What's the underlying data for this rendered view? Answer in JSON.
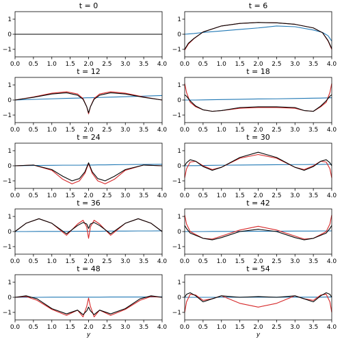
{
  "figure": {
    "xlabel": "y",
    "colors": {
      "blue": "#1f77b4",
      "red": "#d62728",
      "black": "#000000"
    }
  },
  "chart_data": {
    "type": "line",
    "layout": "5x2 grid of subplots",
    "grid": false,
    "xlim": [
      0,
      4
    ],
    "ylim": [
      -1.5,
      1.5
    ],
    "xticks": [
      "0.0",
      "0.5",
      "1.0",
      "1.5",
      "2.0",
      "2.5",
      "3.0",
      "3.5",
      "4.0"
    ],
    "yticks": [
      "-1",
      "0",
      "1"
    ],
    "xlabel": "y",
    "panels": [
      {
        "title": "t = 0",
        "x": [
          0,
          4
        ],
        "series": [
          {
            "color": "blue",
            "y": [
              0,
              0
            ]
          },
          {
            "color": "black",
            "y": [
              0,
              0
            ]
          }
        ]
      },
      {
        "title": "t = 6",
        "x": [
          0,
          0.1,
          0.25,
          0.5,
          1.0,
          1.5,
          2.0,
          2.5,
          3.0,
          3.5,
          3.75,
          3.9,
          4.0
        ],
        "series": [
          {
            "color": "blue",
            "y": [
              0,
              0.02,
              0.05,
              0.12,
              0.22,
              0.32,
              0.42,
              0.55,
              0.5,
              0.28,
              0.12,
              -0.1,
              -0.45
            ]
          },
          {
            "color": "red",
            "y": [
              -1.05,
              -0.65,
              -0.3,
              0.15,
              0.55,
              0.72,
              0.78,
              0.76,
              0.66,
              0.42,
              0.1,
              -0.45,
              -1.0
            ]
          },
          {
            "color": "black",
            "y": [
              -1.0,
              -0.6,
              -0.28,
              0.15,
              0.55,
              0.72,
              0.78,
              0.76,
              0.66,
              0.42,
              0.1,
              -0.42,
              -0.95
            ]
          }
        ]
      },
      {
        "title": "t = 12",
        "x": [
          0,
          0.5,
          1.0,
          1.4,
          1.7,
          1.85,
          1.95,
          2.0,
          2.05,
          2.15,
          2.3,
          2.6,
          3.0,
          3.5,
          4.0
        ],
        "series": [
          {
            "color": "blue",
            "y": [
              0,
              0.04,
              0.08,
              0.11,
              0.13,
              0.14,
              0.15,
              0.15,
              0.15,
              0.16,
              0.17,
              0.19,
              0.22,
              0.26,
              0.3
            ]
          },
          {
            "color": "red",
            "y": [
              0,
              0.2,
              0.45,
              0.55,
              0.4,
              0.1,
              -0.45,
              -0.92,
              -0.45,
              0.1,
              0.4,
              0.55,
              0.45,
              0.2,
              0
            ]
          },
          {
            "color": "black",
            "y": [
              0,
              0.18,
              0.4,
              0.48,
              0.32,
              0.05,
              -0.45,
              -0.85,
              -0.45,
              0.05,
              0.32,
              0.48,
              0.4,
              0.18,
              0
            ]
          }
        ]
      },
      {
        "title": "t = 18",
        "x": [
          0,
          0.05,
          0.15,
          0.3,
          0.5,
          0.75,
          1.0,
          1.5,
          2.0,
          2.5,
          3.0,
          3.25,
          3.5,
          3.7,
          3.85,
          3.95,
          4.0
        ],
        "series": [
          {
            "color": "blue",
            "y": [
              0,
              0.0,
              0.0,
              0.0,
              0.01,
              0.02,
              0.03,
              0.05,
              0.07,
              0.08,
              0.1,
              0.11,
              0.12,
              0.13,
              0.14,
              0.15,
              0.15
            ]
          },
          {
            "color": "red",
            "y": [
              1.1,
              0.5,
              -0.15,
              -0.45,
              -0.65,
              -0.75,
              -0.7,
              -0.55,
              -0.5,
              -0.5,
              -0.55,
              -0.7,
              -0.75,
              -0.45,
              -0.15,
              0.5,
              1.1
            ]
          },
          {
            "color": "black",
            "y": [
              0.35,
              0.25,
              -0.05,
              -0.4,
              -0.65,
              -0.75,
              -0.7,
              -0.5,
              -0.45,
              -0.45,
              -0.5,
              -0.7,
              -0.75,
              -0.4,
              -0.05,
              0.25,
              0.35
            ]
          }
        ]
      },
      {
        "title": "t = 24",
        "x": [
          0,
          0.5,
          1.0,
          1.3,
          1.55,
          1.75,
          1.9,
          2.0,
          2.1,
          2.25,
          2.45,
          2.7,
          3.0,
          3.5,
          4.0
        ],
        "series": [
          {
            "color": "blue",
            "y": [
              0,
              0.02,
              0.03,
              0.04,
              0.04,
              0.04,
              0.05,
              0.05,
              0.05,
              0.06,
              0.06,
              0.07,
              0.08,
              0.09,
              0.1
            ]
          },
          {
            "color": "red",
            "y": [
              0,
              0.05,
              -0.3,
              -0.9,
              -1.2,
              -1.0,
              -0.5,
              0.15,
              -0.5,
              -1.0,
              -1.2,
              -0.9,
              -0.3,
              0.05,
              0
            ]
          },
          {
            "color": "black",
            "y": [
              0,
              0.05,
              -0.25,
              -0.7,
              -1.0,
              -0.85,
              -0.4,
              0.2,
              -0.4,
              -0.85,
              -1.0,
              -0.7,
              -0.25,
              0.05,
              0
            ]
          }
        ]
      },
      {
        "title": "t = 30",
        "x": [
          0,
          0.05,
          0.15,
          0.3,
          0.5,
          0.75,
          1.0,
          1.5,
          2.0,
          2.5,
          3.0,
          3.25,
          3.5,
          3.7,
          3.85,
          3.95,
          4.0
        ],
        "series": [
          {
            "color": "blue",
            "y": [
              0,
              0.0,
              0.01,
              0.01,
              0.02,
              0.03,
              0.04,
              0.05,
              0.06,
              0.07,
              0.08,
              0.08,
              0.09,
              0.09,
              0.1,
              0.1,
              0.1
            ]
          },
          {
            "color": "red",
            "y": [
              -0.8,
              -0.2,
              0.25,
              0.3,
              0.0,
              -0.25,
              -0.1,
              0.5,
              0.75,
              0.5,
              -0.1,
              -0.25,
              0.0,
              0.3,
              0.25,
              -0.2,
              -0.8
            ]
          },
          {
            "color": "black",
            "y": [
              0.0,
              0.2,
              0.4,
              0.3,
              -0.05,
              -0.3,
              -0.1,
              0.55,
              0.9,
              0.55,
              -0.1,
              -0.3,
              -0.05,
              0.3,
              0.4,
              0.2,
              0.0
            ]
          }
        ]
      },
      {
        "title": "t = 36",
        "x": [
          0,
          0.3,
          0.65,
          1.0,
          1.4,
          1.7,
          1.85,
          1.95,
          2.0,
          2.05,
          2.15,
          2.3,
          2.6,
          3.0,
          3.35,
          3.7,
          4.0
        ],
        "series": [
          {
            "color": "blue",
            "y": [
              0,
              0.0,
              0.01,
              0.01,
              0.01,
              0.02,
              0.02,
              0.02,
              0.02,
              0.02,
              0.02,
              0.02,
              0.03,
              0.03,
              0.04,
              0.04,
              0.05
            ]
          },
          {
            "color": "red",
            "y": [
              0,
              0.55,
              0.85,
              0.55,
              -0.25,
              0.5,
              0.75,
              0.3,
              -0.45,
              0.3,
              0.75,
              0.5,
              -0.25,
              0.55,
              0.85,
              0.55,
              0
            ]
          },
          {
            "color": "black",
            "y": [
              0,
              0.55,
              0.85,
              0.55,
              -0.15,
              0.4,
              0.6,
              0.5,
              0.2,
              0.5,
              0.6,
              0.4,
              -0.15,
              0.55,
              0.85,
              0.55,
              0
            ]
          }
        ]
      },
      {
        "title": "t = 42",
        "x": [
          0,
          0.05,
          0.15,
          0.3,
          0.5,
          0.75,
          1.0,
          1.5,
          2.0,
          2.5,
          3.0,
          3.25,
          3.5,
          3.7,
          3.85,
          3.95,
          4.0
        ],
        "series": [
          {
            "color": "blue",
            "y": [
              0,
              0.0,
              0.0,
              0.0,
              0.0,
              0.01,
              0.01,
              0.01,
              0.02,
              0.02,
              0.03,
              0.03,
              0.03,
              0.04,
              0.04,
              0.04,
              0.05
            ]
          },
          {
            "color": "red",
            "y": [
              1.1,
              0.5,
              0.0,
              -0.2,
              -0.45,
              -0.5,
              -0.3,
              0.1,
              0.35,
              0.1,
              -0.3,
              -0.5,
              -0.45,
              -0.2,
              0.0,
              0.5,
              1.1
            ]
          },
          {
            "color": "black",
            "y": [
              0.4,
              0.2,
              -0.1,
              -0.25,
              -0.45,
              -0.55,
              -0.4,
              0.0,
              0.15,
              0.0,
              -0.4,
              -0.55,
              -0.45,
              -0.25,
              -0.1,
              0.2,
              0.4
            ]
          }
        ]
      },
      {
        "title": "t = 48",
        "x": [
          0,
          0.3,
          0.6,
          1.0,
          1.4,
          1.7,
          1.85,
          1.95,
          2.0,
          2.05,
          2.15,
          2.3,
          2.6,
          3.0,
          3.4,
          3.7,
          4.0
        ],
        "series": [
          {
            "color": "blue",
            "y": [
              0,
              0.0,
              0.0,
              0.01,
              0.01,
              0.01,
              0.01,
              0.01,
              0.01,
              0.01,
              0.01,
              0.01,
              0.02,
              0.02,
              0.02,
              0.02,
              0.03
            ]
          },
          {
            "color": "red",
            "y": [
              0,
              0.05,
              -0.2,
              -0.8,
              -1.2,
              -0.85,
              -1.3,
              -0.6,
              -0.05,
              -0.6,
              -1.3,
              -0.85,
              -1.2,
              -0.8,
              -0.2,
              0.05,
              0
            ]
          },
          {
            "color": "black",
            "y": [
              0,
              0.1,
              -0.1,
              -0.75,
              -1.1,
              -0.85,
              -1.15,
              -0.9,
              -0.65,
              -0.9,
              -1.15,
              -0.85,
              -1.1,
              -0.75,
              -0.1,
              0.1,
              0
            ]
          }
        ]
      },
      {
        "title": "t = 54",
        "x": [
          0,
          0.05,
          0.15,
          0.3,
          0.5,
          0.75,
          1.0,
          1.5,
          2.0,
          2.5,
          3.0,
          3.25,
          3.5,
          3.7,
          3.85,
          3.95,
          4.0
        ],
        "series": [
          {
            "color": "blue",
            "y": [
              0,
              0.0,
              0.0,
              0.0,
              0.0,
              0.0,
              0.0,
              0.01,
              0.01,
              0.01,
              0.01,
              0.01,
              0.01,
              0.01,
              0.02,
              0.02,
              0.02
            ]
          },
          {
            "color": "red",
            "y": [
              -1.0,
              -0.3,
              0.2,
              0.15,
              -0.2,
              -0.1,
              0.1,
              -0.4,
              -0.65,
              -0.4,
              0.1,
              -0.1,
              -0.2,
              0.15,
              0.2,
              -0.3,
              -1.0
            ]
          },
          {
            "color": "black",
            "y": [
              0.0,
              0.2,
              0.3,
              0.1,
              -0.3,
              -0.1,
              0.1,
              0.0,
              0.05,
              0.0,
              0.1,
              -0.1,
              -0.3,
              0.1,
              0.3,
              0.2,
              0.0
            ]
          }
        ]
      }
    ]
  }
}
